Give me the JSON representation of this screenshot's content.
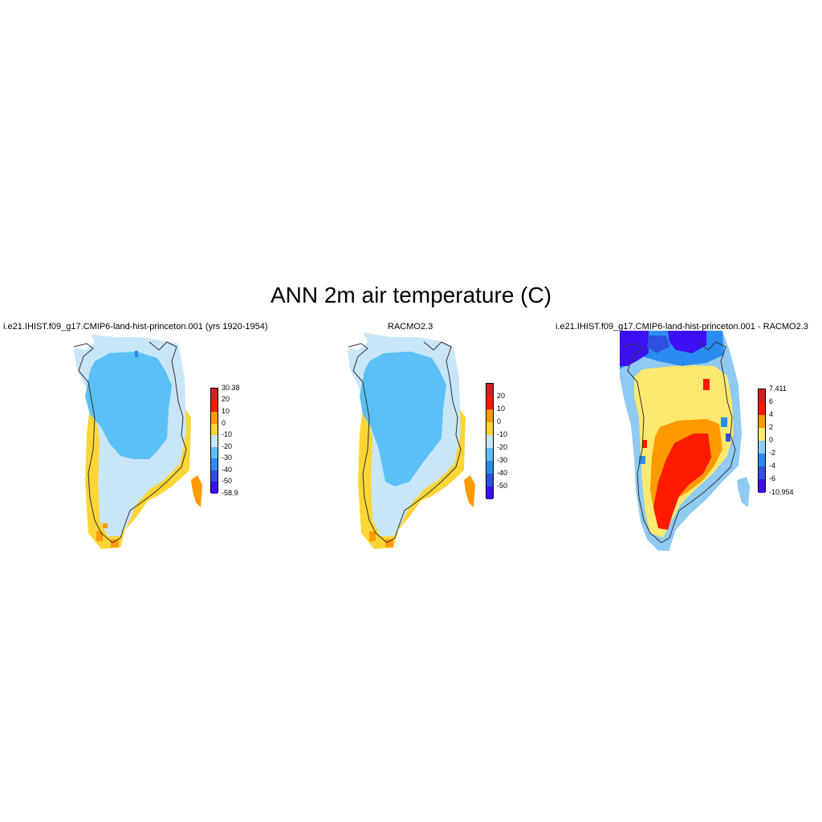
{
  "title": "ANN 2m air temperature (C)",
  "panels": [
    {
      "title": "i.e21.IHIST.f09_g17.CMIP6-land-hist-princeton.001 (yrs 1920-1954)",
      "colorbar": {
        "colors": [
          "#3c0ff5",
          "#2f50e0",
          "#2a8cf0",
          "#5ac0f5",
          "#c8e6f8",
          "#fdd535",
          "#ff9a00",
          "#ff1a00",
          "#d42020"
        ],
        "labels": [
          "30.38",
          "20",
          "10",
          "0",
          "-10",
          "-20",
          "-30",
          "-40",
          "-50",
          "-58.9"
        ]
      }
    },
    {
      "title": "RACMO2.3",
      "colorbar": {
        "colors": [
          "#3c0ff5",
          "#2f50e0",
          "#2a8cf0",
          "#5ac0f5",
          "#c8e6f8",
          "#fdd535",
          "#ff9a00",
          "#ff1a00",
          "#d42020"
        ],
        "labels": [
          "20",
          "10",
          "0",
          "-10",
          "-20",
          "-30",
          "-40",
          "-50"
        ]
      }
    },
    {
      "title": "i.e21.IHIST.f09_g17.CMIP6-land-hist-princeton.001 - RACMO2.3",
      "colorbar": {
        "colors": [
          "#3c0ff5",
          "#2f50e0",
          "#2a8cf0",
          "#8fcaf2",
          "#fde970",
          "#ff9a00",
          "#ff1a00",
          "#d42020"
        ],
        "labels": [
          "7.411",
          "6",
          "4",
          "2",
          "0",
          "-2",
          "-4",
          "-6",
          "-10.954"
        ]
      }
    }
  ]
}
